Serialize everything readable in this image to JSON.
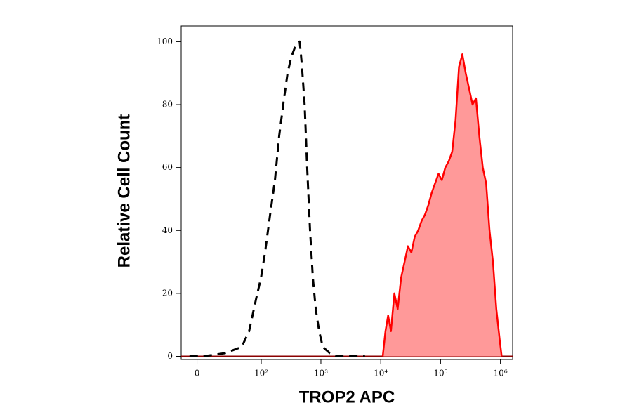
{
  "chart_data": {
    "type": "histogram-overlay",
    "xlabel": "TROP2 APC",
    "ylabel": "Relative Cell Count",
    "xscale": "asinh",
    "xlim": [
      -11,
      1600000
    ],
    "xticks": [
      0,
      {
        "value": 100,
        "label": "10²"
      },
      {
        "value": 1000,
        "label": "10³"
      },
      {
        "value": 10000,
        "label": "10⁴"
      },
      {
        "value": 100000,
        "label": "10⁵"
      },
      {
        "value": 1000000,
        "label": "10⁶"
      }
    ],
    "ylim": [
      -1,
      105
    ],
    "yticks": [
      0,
      20,
      40,
      60,
      80,
      100
    ],
    "series": [
      {
        "color": "#000000",
        "style": "dashed",
        "fill": null,
        "x": [
          -5,
          4,
          22,
          46,
          62,
          81,
          99,
          116,
          141,
          170,
          200,
          242,
          277,
          318,
          364,
          442,
          478,
          534,
          590,
          658,
          734,
          819,
          935,
          1074,
          1411,
          1845,
          3162,
          5440
        ],
        "values": [
          0,
          0,
          1,
          3,
          8,
          18,
          25,
          33,
          45,
          56,
          70,
          82,
          90,
          95,
          98,
          100,
          93,
          80,
          60,
          40,
          25,
          15,
          8,
          3,
          1,
          0,
          0,
          0
        ]
      },
      {
        "color": "#ff0000",
        "style": "solid",
        "fill": "#ff9999",
        "x": [
          10800,
          12000,
          13300,
          14800,
          16900,
          19200,
          21900,
          25000,
          28500,
          32500,
          37000,
          42200,
          48100,
          54800,
          62400,
          71100,
          81100,
          92500,
          105000,
          120000,
          137000,
          156000,
          178000,
          203000,
          231000,
          263000,
          300000,
          342000,
          390000,
          444000,
          507000,
          577000,
          658000,
          750000,
          855000,
          975000,
          1050000
        ],
        "values": [
          0,
          8,
          13,
          8,
          20,
          15,
          25,
          30,
          35,
          33,
          38,
          40,
          43,
          45,
          48,
          52,
          55,
          58,
          56,
          60,
          62,
          65,
          75,
          92,
          96,
          90,
          85,
          80,
          82,
          70,
          60,
          55,
          40,
          30,
          15,
          5,
          0
        ]
      }
    ]
  }
}
